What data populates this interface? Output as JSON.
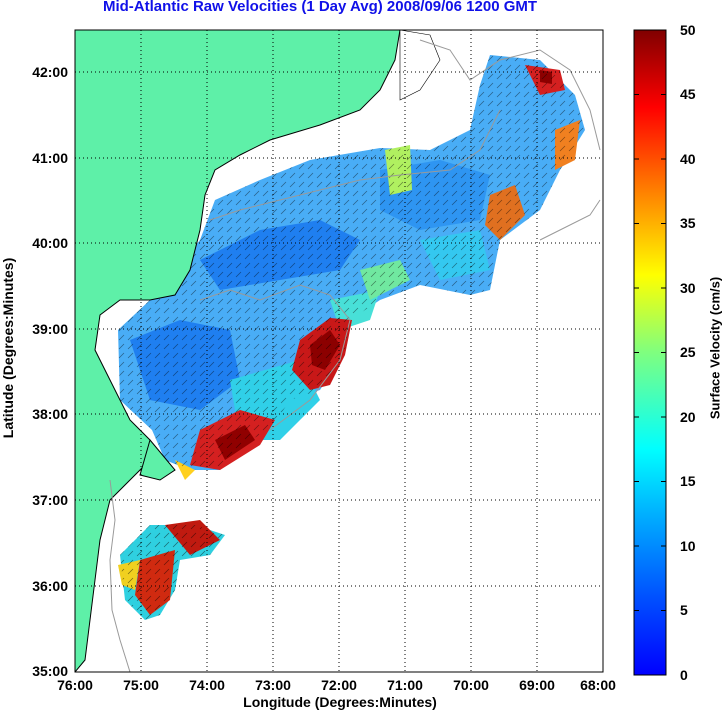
{
  "title": "Mid-Atlantic Raw Velocities (1 Day Avg) 2008/09/06 1200 GMT",
  "x_axis": {
    "label": "Longitude (Degrees:Minutes)",
    "ticks": [
      "76:00",
      "75:00",
      "74:00",
      "73:00",
      "72:00",
      "71:00",
      "70:00",
      "69:00",
      "68:00"
    ]
  },
  "y_axis": {
    "label": "Latitude (Degrees:Minutes)",
    "ticks": [
      "42:00",
      "41:00",
      "40:00",
      "39:00",
      "38:00",
      "37:00",
      "36:00",
      "35:00"
    ]
  },
  "colorbar": {
    "label": "Surface Velocity (cm/s)",
    "ticks": [
      "50",
      "45",
      "40",
      "35",
      "30",
      "25",
      "20",
      "15",
      "10",
      "5",
      "0"
    ],
    "min": 0,
    "max": 50,
    "colormap": "jet"
  },
  "colors": {
    "title": "#1010e8",
    "land": "#5ef0a8",
    "background": "#ffffff"
  }
}
